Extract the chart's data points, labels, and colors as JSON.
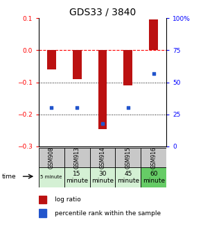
{
  "title": "GDS33 / 3840",
  "samples": [
    "GSM908",
    "GSM913",
    "GSM914",
    "GSM915",
    "GSM916"
  ],
  "time_labels_row2": [
    "5 minute",
    "15\nminute",
    "30\nminute",
    "45\nminute",
    "60\nminute"
  ],
  "time_small": [
    true,
    false,
    false,
    false,
    false
  ],
  "time_colors": [
    "#d4f0d4",
    "#d4f0d4",
    "#d4f0d4",
    "#d4f0d4",
    "#66cc66"
  ],
  "log_ratios": [
    -0.06,
    -0.09,
    -0.245,
    -0.11,
    0.097
  ],
  "percentile_ranks": [
    30,
    30,
    18,
    30,
    57
  ],
  "bar_color": "#bb1111",
  "dot_color": "#2255cc",
  "ylim_left": [
    -0.3,
    0.1
  ],
  "ylim_right": [
    0,
    100
  ],
  "yticks_left": [
    -0.3,
    -0.2,
    -0.1,
    0.0,
    0.1
  ],
  "yticks_right": [
    0,
    25,
    50,
    75,
    100
  ],
  "hline_y": 0.0,
  "dotted_lines": [
    -0.1,
    -0.2
  ],
  "plot_bg": "#ffffff",
  "title_fontsize": 10,
  "tick_fontsize": 6.5,
  "legend_fontsize": 6.5,
  "sample_fontsize": 5.5,
  "time_fontsize_big": 6.5,
  "time_fontsize_small": 5.0,
  "gray_color": "#c8c8c8",
  "bar_width": 0.35
}
